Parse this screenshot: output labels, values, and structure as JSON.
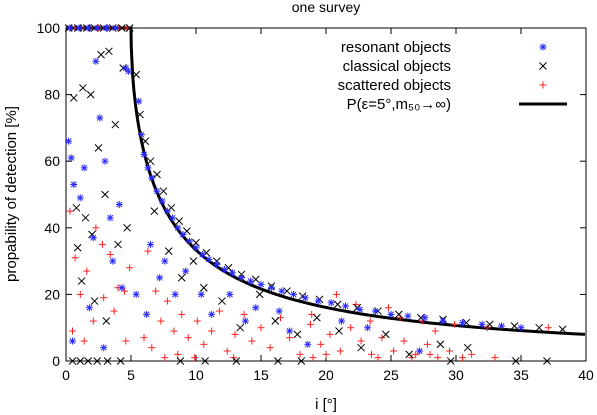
{
  "chart_data": {
    "type": "scatter",
    "title": "one survey",
    "xlabel": "i [°]",
    "ylabel": "propability of detection [%]",
    "xlim": [
      0,
      40
    ],
    "ylim": [
      0,
      100
    ],
    "x_ticks": [
      0,
      5,
      10,
      15,
      20,
      25,
      30,
      35,
      40
    ],
    "y_ticks": [
      0,
      20,
      40,
      60,
      80,
      100
    ],
    "x_tick_labels": [
      "0",
      "5",
      "10",
      "15",
      "20",
      "25",
      "30",
      "35",
      "40"
    ],
    "y_tick_labels": [
      "0",
      "20",
      "40",
      "60",
      "80",
      "100"
    ],
    "grid": false,
    "legend_position": "top-right",
    "series": [
      {
        "name": "resonant objects",
        "marker": "asterisk",
        "color": "#2a2aff",
        "points": [
          [
            0.3,
            100
          ],
          [
            1.0,
            100
          ],
          [
            1.7,
            100
          ],
          [
            2.4,
            100
          ],
          [
            3.1,
            100
          ],
          [
            3.8,
            100
          ],
          [
            0.2,
            66
          ],
          [
            0.4,
            61
          ],
          [
            0.6,
            53
          ],
          [
            1.1,
            49
          ],
          [
            1.4,
            58
          ],
          [
            2.1,
            37
          ],
          [
            2.3,
            90
          ],
          [
            2.6,
            73
          ],
          [
            3.0,
            60
          ],
          [
            3.4,
            43
          ],
          [
            3.6,
            30
          ],
          [
            4.1,
            47
          ],
          [
            4.6,
            88
          ],
          [
            4.8,
            87
          ],
          [
            0.5,
            6
          ],
          [
            1.8,
            16
          ],
          [
            2.9,
            4
          ],
          [
            4.3,
            22
          ],
          [
            5.6,
            78
          ],
          [
            5.8,
            68
          ],
          [
            6.0,
            62
          ],
          [
            6.3,
            58
          ],
          [
            6.6,
            55
          ],
          [
            7.0,
            51
          ],
          [
            7.4,
            48
          ],
          [
            7.8,
            45
          ],
          [
            8.2,
            43
          ],
          [
            8.6,
            40
          ],
          [
            9.0,
            38
          ],
          [
            9.5,
            36
          ],
          [
            10.0,
            34
          ],
          [
            10.5,
            32
          ],
          [
            11.0,
            30.5
          ],
          [
            11.6,
            29
          ],
          [
            12.2,
            27.5
          ],
          [
            12.8,
            26.5
          ],
          [
            13.5,
            25
          ],
          [
            14.2,
            24
          ],
          [
            15.0,
            23
          ],
          [
            15.8,
            22
          ],
          [
            16.6,
            21
          ],
          [
            17.5,
            20
          ],
          [
            18.4,
            19
          ],
          [
            19.4,
            18
          ],
          [
            20.4,
            17.5
          ],
          [
            21.5,
            16.5
          ],
          [
            22.6,
            15.5
          ],
          [
            23.8,
            15
          ],
          [
            25.0,
            14
          ],
          [
            26.3,
            13.5
          ],
          [
            27.6,
            13
          ],
          [
            29.0,
            12
          ],
          [
            30.5,
            11.5
          ],
          [
            32.0,
            11
          ],
          [
            33.5,
            10.5
          ],
          [
            35.0,
            10
          ],
          [
            6.5,
            35
          ],
          [
            7.2,
            25
          ],
          [
            7.6,
            30
          ],
          [
            8.4,
            20
          ],
          [
            9.2,
            27
          ],
          [
            10.4,
            20
          ],
          [
            11.2,
            14
          ],
          [
            12.6,
            20
          ],
          [
            13.8,
            12
          ],
          [
            14.6,
            16
          ],
          [
            16.4,
            15
          ],
          [
            17.2,
            9
          ],
          [
            18.6,
            5
          ],
          [
            21.2,
            12
          ],
          [
            23.2,
            10
          ],
          [
            27.2,
            3
          ],
          [
            5.4,
            20
          ],
          [
            6.2,
            14
          ]
        ]
      },
      {
        "name": "classical objects",
        "marker": "x",
        "color": "#000000",
        "points": [
          [
            0.2,
            100
          ],
          [
            0.9,
            100
          ],
          [
            1.6,
            100
          ],
          [
            2.2,
            100
          ],
          [
            2.9,
            100
          ],
          [
            3.6,
            100
          ],
          [
            4.3,
            100
          ],
          [
            4.9,
            100
          ],
          [
            0.6,
            79
          ],
          [
            1.3,
            82
          ],
          [
            1.9,
            80
          ],
          [
            2.7,
            92
          ],
          [
            3.3,
            93
          ],
          [
            4.4,
            88
          ],
          [
            0.8,
            46
          ],
          [
            1.5,
            43
          ],
          [
            2.0,
            38
          ],
          [
            2.5,
            64
          ],
          [
            3.0,
            50
          ],
          [
            3.8,
            71
          ],
          [
            0.9,
            34
          ],
          [
            2.2,
            18
          ],
          [
            3.1,
            12
          ],
          [
            4.0,
            35
          ],
          [
            4.7,
            40
          ],
          [
            1.2,
            24
          ],
          [
            5.4,
            86
          ],
          [
            5.7,
            74
          ],
          [
            6.1,
            66
          ],
          [
            6.5,
            60
          ],
          [
            7.0,
            56
          ],
          [
            7.5,
            51
          ],
          [
            8.1,
            46
          ],
          [
            8.7,
            42
          ],
          [
            9.3,
            39
          ],
          [
            10.0,
            35.5
          ],
          [
            10.8,
            32.5
          ],
          [
            11.6,
            30
          ],
          [
            12.5,
            28
          ],
          [
            13.5,
            26
          ],
          [
            14.6,
            24.5
          ],
          [
            15.8,
            22.5
          ],
          [
            17.0,
            21
          ],
          [
            18.2,
            19.5
          ],
          [
            19.5,
            18.5
          ],
          [
            20.9,
            17
          ],
          [
            22.4,
            16
          ],
          [
            24.0,
            15
          ],
          [
            25.6,
            14
          ],
          [
            27.3,
            13
          ],
          [
            29.0,
            12.5
          ],
          [
            30.8,
            11.5
          ],
          [
            32.6,
            11
          ],
          [
            34.5,
            10.5
          ],
          [
            36.4,
            10
          ],
          [
            38.2,
            9.5
          ],
          [
            6.8,
            45
          ],
          [
            7.9,
            33
          ],
          [
            8.9,
            25
          ],
          [
            9.8,
            30
          ],
          [
            10.6,
            22
          ],
          [
            12.0,
            18
          ],
          [
            13.4,
            10
          ],
          [
            14.9,
            20
          ],
          [
            16.1,
            12
          ],
          [
            17.8,
            8
          ],
          [
            19.3,
            13
          ],
          [
            21.0,
            9
          ],
          [
            22.7,
            4
          ],
          [
            24.6,
            8
          ],
          [
            26.4,
            2
          ],
          [
            28.8,
            5
          ],
          [
            30.9,
            4
          ],
          [
            0.5,
            0
          ],
          [
            1.1,
            0
          ],
          [
            1.7,
            0
          ],
          [
            2.4,
            0
          ],
          [
            3.2,
            0
          ],
          [
            4.2,
            0
          ],
          [
            8.8,
            0
          ],
          [
            10.7,
            0
          ],
          [
            13.1,
            0
          ],
          [
            16.3,
            0
          ],
          [
            18.1,
            0
          ],
          [
            29.6,
            0
          ],
          [
            34.6,
            0
          ],
          [
            37.0,
            0
          ]
        ]
      },
      {
        "name": "scattered objects",
        "marker": "plus",
        "color": "#ff2020",
        "points": [
          [
            0.3,
            100
          ],
          [
            0.7,
            100
          ],
          [
            1.2,
            100
          ],
          [
            1.8,
            100
          ],
          [
            2.5,
            100
          ],
          [
            3.2,
            100
          ],
          [
            4.0,
            100
          ],
          [
            4.7,
            100
          ],
          [
            0.3,
            45
          ],
          [
            0.7,
            31
          ],
          [
            1.1,
            20
          ],
          [
            1.6,
            27
          ],
          [
            2.3,
            40
          ],
          [
            2.8,
            35
          ],
          [
            3.4,
            32
          ],
          [
            4.0,
            22
          ],
          [
            4.5,
            21
          ],
          [
            0.5,
            9
          ],
          [
            1.4,
            6
          ],
          [
            2.1,
            12
          ],
          [
            2.9,
            19
          ],
          [
            3.7,
            15
          ],
          [
            4.6,
            6
          ],
          [
            4.9,
            28
          ],
          [
            6.3,
            33
          ],
          [
            6.9,
            21
          ],
          [
            7.3,
            12
          ],
          [
            7.8,
            18
          ],
          [
            8.3,
            9
          ],
          [
            8.9,
            14
          ],
          [
            9.4,
            7
          ],
          [
            10.1,
            12
          ],
          [
            10.6,
            5
          ],
          [
            11.2,
            9
          ],
          [
            11.8,
            15
          ],
          [
            12.4,
            3
          ],
          [
            13.0,
            8
          ],
          [
            13.7,
            14
          ],
          [
            14.3,
            6
          ],
          [
            15.0,
            10
          ],
          [
            15.7,
            4
          ],
          [
            16.5,
            13
          ],
          [
            17.2,
            7
          ],
          [
            18.0,
            2
          ],
          [
            18.8,
            11
          ],
          [
            19.6,
            5
          ],
          [
            20.3,
            8
          ],
          [
            21.1,
            3
          ],
          [
            21.9,
            10
          ],
          [
            22.7,
            6
          ],
          [
            23.5,
            2
          ],
          [
            24.3,
            7
          ],
          [
            25.2,
            3
          ],
          [
            26.0,
            6
          ],
          [
            26.9,
            2
          ],
          [
            27.8,
            5
          ],
          [
            28.6,
            1
          ],
          [
            29.5,
            3
          ],
          [
            31.2,
            2
          ],
          [
            33.0,
            1
          ],
          [
            20.8,
            20
          ],
          [
            22.3,
            17
          ],
          [
            23.4,
            12
          ],
          [
            24.8,
            16
          ],
          [
            25.7,
            13
          ],
          [
            27.4,
            12
          ],
          [
            28.4,
            9
          ],
          [
            29.9,
            11
          ],
          [
            32.4,
            10
          ],
          [
            37.1,
            10
          ],
          [
            18.9,
            14
          ],
          [
            6.0,
            7
          ],
          [
            6.6,
            4
          ],
          [
            7.6,
            1
          ],
          [
            8.6,
            2
          ],
          [
            9.9,
            1
          ],
          [
            12.9,
            1
          ],
          [
            19.0,
            1
          ],
          [
            20.0,
            2
          ],
          [
            24.0,
            1
          ],
          [
            26.6,
            1
          ],
          [
            28.0,
            2
          ],
          [
            30.5,
            1
          ]
        ]
      }
    ],
    "curve": {
      "name": "P(ε=5°,m₅₀→∞)",
      "color": "#000000",
      "plateau_value": 100,
      "plateau_until": 5,
      "formula_note": "P = 100 * (2/π) * asin(ε / i) for i > ε, ε = 5"
    }
  }
}
